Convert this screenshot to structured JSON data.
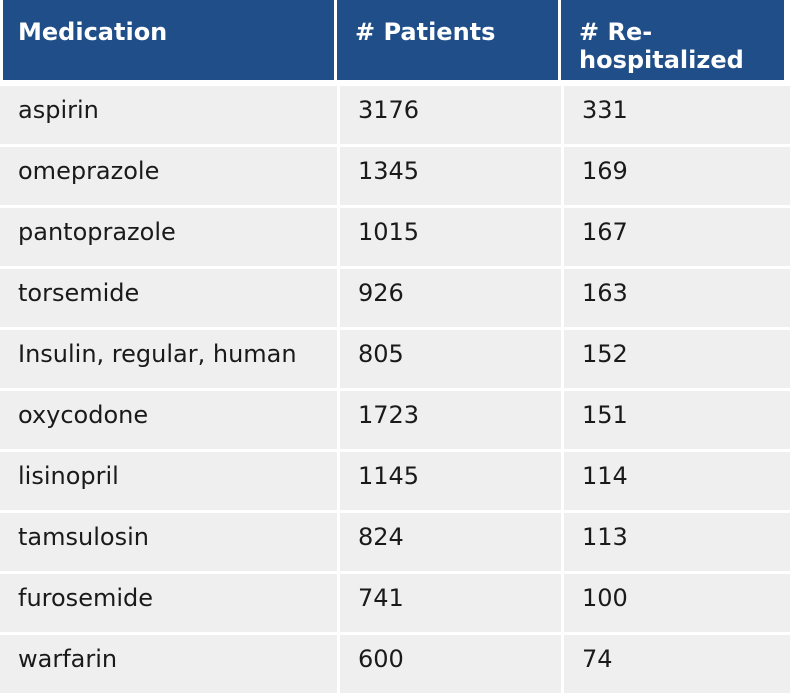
{
  "table": {
    "headers": [
      "Medication",
      "# Patients",
      "# Re-\nhospitalized"
    ],
    "header_color": "#1f4e89",
    "row_color": "#efefef",
    "rows": [
      {
        "medication": "aspirin",
        "patients": "3176",
        "rehospitalized": "331"
      },
      {
        "medication": "omeprazole",
        "patients": "1345",
        "rehospitalized": "169"
      },
      {
        "medication": "pantoprazole",
        "patients": "1015",
        "rehospitalized": "167"
      },
      {
        "medication": "torsemide",
        "patients": "926",
        "rehospitalized": "163"
      },
      {
        "medication": "Insulin, regular, human",
        "patients": "805",
        "rehospitalized": "152"
      },
      {
        "medication": "oxycodone",
        "patients": "1723",
        "rehospitalized": "151"
      },
      {
        "medication": "lisinopril",
        "patients": "1145",
        "rehospitalized": "114"
      },
      {
        "medication": "tamsulosin",
        "patients": "824",
        "rehospitalized": "113"
      },
      {
        "medication": "furosemide",
        "patients": "741",
        "rehospitalized": "100"
      },
      {
        "medication": "warfarin",
        "patients": "600",
        "rehospitalized": "74"
      }
    ]
  }
}
